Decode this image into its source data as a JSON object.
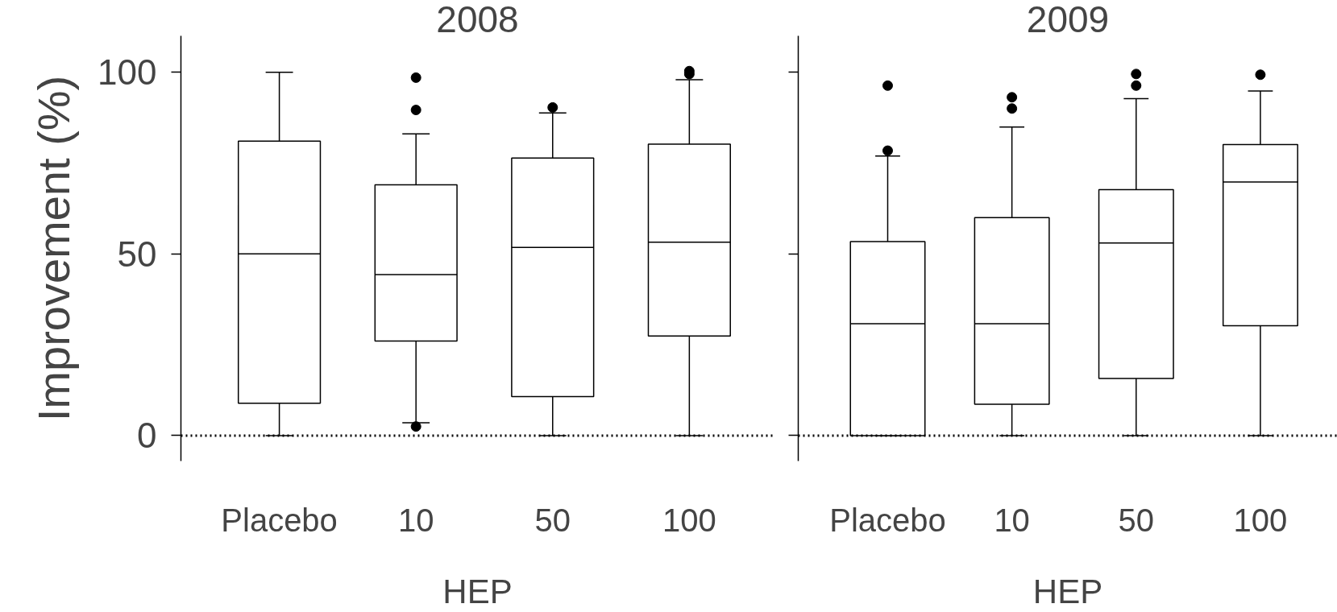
{
  "chart_data": [
    {
      "type": "box",
      "title": "2008",
      "xlabel": "HEP",
      "ylabel": "Improvement (%)",
      "categories": [
        "Placebo",
        "10",
        "50",
        "100"
      ],
      "boxes": [
        {
          "low": 0,
          "q1": 8.9,
          "median": 50,
          "q3": 81,
          "high": 100
        },
        {
          "low": 3.5,
          "q1": 26,
          "median": 44.3,
          "q3": 69,
          "high": 83,
          "outliers": [
            98.5,
            89.6,
            2.5
          ]
        },
        {
          "low": 0,
          "q1": 10.7,
          "median": 51.8,
          "q3": 76.4,
          "high": 88.8,
          "outliers": [
            90.3
          ]
        },
        {
          "low": 0,
          "q1": 27.4,
          "median": 53.2,
          "q3": 80.2,
          "high": 97.9,
          "outliers": [
            100.3,
            99.5
          ]
        }
      ],
      "ylim": [
        -7,
        110
      ],
      "yticks": [
        0,
        50,
        100
      ],
      "ref_lines": [
        {
          "axis": "y",
          "value": 0,
          "line_style": "dotted"
        }
      ],
      "grid": false
    },
    {
      "type": "box",
      "title": "2009",
      "xlabel": "HEP",
      "categories": [
        "Placebo",
        "10",
        "50",
        "100"
      ],
      "boxes": [
        {
          "low": 0,
          "q1": 0,
          "median": 30.8,
          "q3": 53.4,
          "high": 76.9,
          "outliers": [
            78.4,
            96.3
          ]
        },
        {
          "low": 0,
          "q1": 8.6,
          "median": 30.8,
          "q3": 60,
          "high": 84.9,
          "outliers": [
            93.1,
            90
          ]
        },
        {
          "low": 0,
          "q1": 15.7,
          "median": 53,
          "q3": 67.7,
          "high": 92.7,
          "outliers": [
            99.5,
            96.3
          ]
        },
        {
          "low": 0,
          "q1": 30.2,
          "median": 69.8,
          "q3": 80.1,
          "high": 94.8,
          "outliers": [
            99.3
          ]
        }
      ],
      "ylim": [
        -7,
        110
      ],
      "yticks": [
        0,
        50,
        100
      ],
      "ref_lines": [
        {
          "axis": "y",
          "value": 0,
          "line_style": "dotted"
        }
      ],
      "grid": false,
      "tick_labels": "x"
    }
  ]
}
